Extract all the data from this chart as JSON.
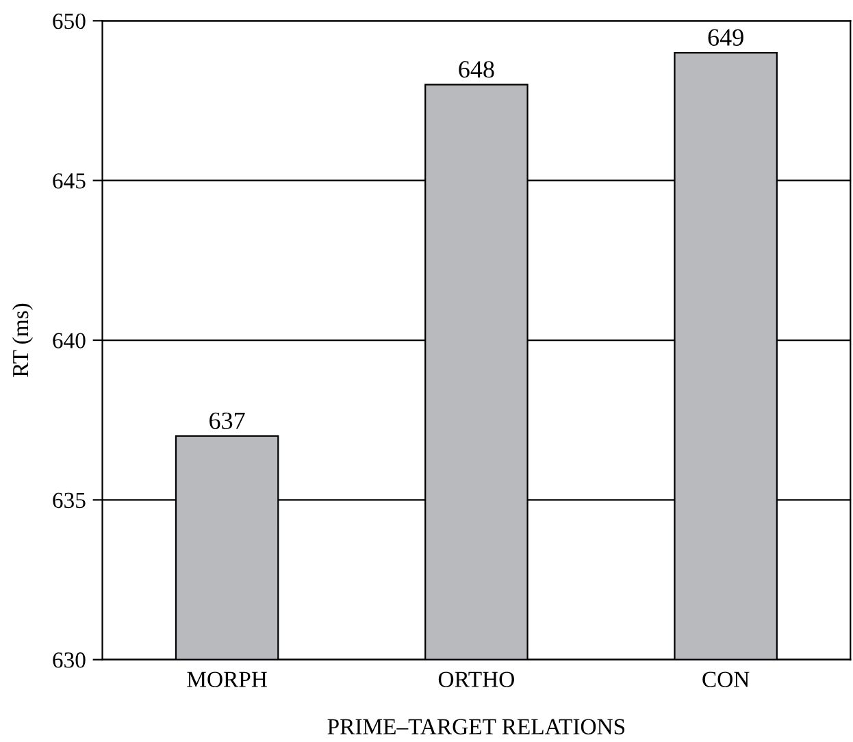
{
  "chart_data": {
    "type": "bar",
    "xlabel": "PRIME–TARGET RELATIONS",
    "ylabel": "RT (ms)",
    "categories": [
      "MORPH",
      "ORTHO",
      "CON"
    ],
    "values": [
      637,
      648,
      649
    ],
    "color": "#b9babe",
    "ylim": [
      630,
      650
    ],
    "yticks": [
      630,
      635,
      640,
      645,
      650
    ],
    "grid": "y",
    "data_labels": true
  }
}
